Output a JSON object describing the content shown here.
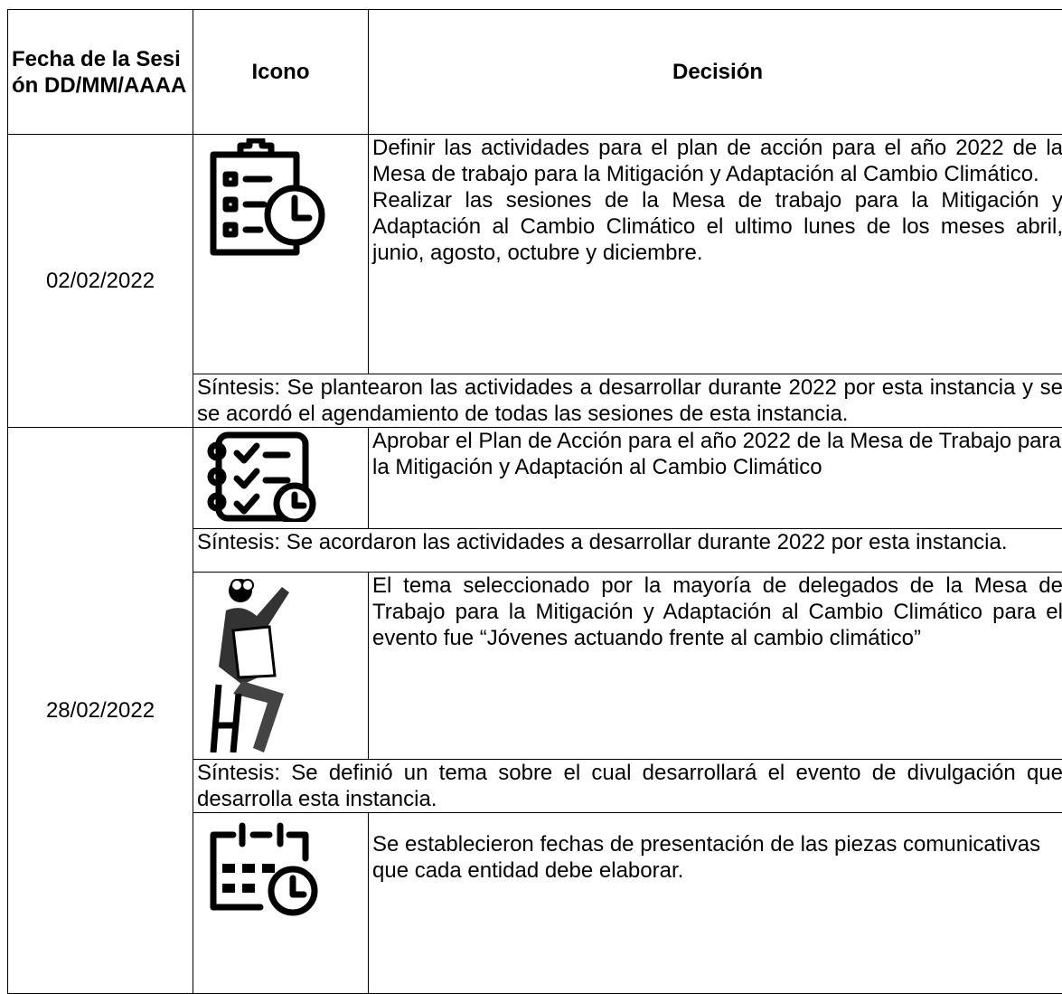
{
  "header": [
    "Fecha de la Sesión DD/MM/AAAA",
    "Icono",
    "Decisión"
  ],
  "sessions": [
    {
      "date": "02/02/2022",
      "entries": [
        {
          "decision": [
            "Definir las actividades para el plan de acción para el año 2022 de la Mesa de trabajo para la Mitigación y Adaptación al Cambio Climático.",
            "Realizar las sesiones de la Mesa de trabajo para la Mitigación y Adaptación al Cambio Climático el ultimo lunes de los meses abril, junio, agosto, octubre y diciembre."
          ],
          "synthesis": "Síntesis: Se plantearon las actividades a desarrollar durante 2022 por esta instancia y se se acordó el agendamiento de todas las sesiones de esta instancia."
        }
      ]
    },
    {
      "date": "28/02/2022",
      "entries": [
        {
          "decision": [
            "Aprobar el Plan de Acción para el año 2022 de la Mesa de Trabajo para",
            "la Mitigación y Adaptación al Cambio Climático"
          ],
          "synthesis": "Síntesis: Se acordaron las actividades a desarrollar durante 2022 por esta instancia."
        },
        {
          "decision": [
            "El tema seleccionado por la mayoría de delegados de la Mesa de Trabajo para la Mitigación y Adaptación al Cambio Climático para el evento fue “Jóvenes actuando frente al cambio climático”"
          ],
          "synthesis": "Síntesis: Se definió un tema sobre el cual desarrollará el evento de divulgación que desarrolla esta instancia."
        },
        {
          "decision": [
            "Se establecieron fechas de presentación de las piezas comunicativas que cada entidad debe elaborar."
          ]
        }
      ]
    }
  ]
}
